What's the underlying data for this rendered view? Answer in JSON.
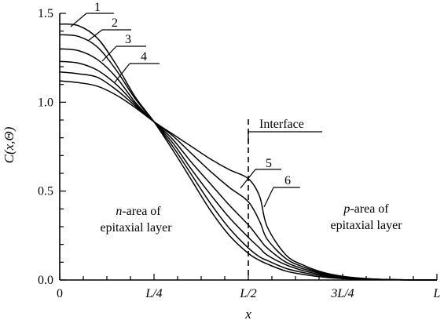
{
  "chart_data": {
    "type": "line",
    "xlabel": "x",
    "ylabel": "C(x,Θ)",
    "xlim": [
      0,
      1
    ],
    "ylim": [
      0,
      1.5
    ],
    "x_ticks": [
      {
        "value": 0,
        "label": "0"
      },
      {
        "value": 0.25,
        "label": "L/4"
      },
      {
        "value": 0.5,
        "label": "L/2"
      },
      {
        "value": 0.75,
        "label": "3L/4"
      },
      {
        "value": 1,
        "label": "L"
      }
    ],
    "y_ticks": [
      {
        "value": 0,
        "label": "0.0"
      },
      {
        "value": 0.5,
        "label": "0.5"
      },
      {
        "value": 1.0,
        "label": "1.0"
      },
      {
        "value": 1.5,
        "label": "1.5"
      }
    ],
    "interface_x": 0.5,
    "interface_label": "Interface",
    "region_labels": {
      "n_italic": "n",
      "n_rest": "-area of",
      "n_line2": "epitaxial layer",
      "p_italic": "p",
      "p_rest": "-area of",
      "p_line2": "epitaxial layer"
    },
    "curve_labels": [
      "1",
      "2",
      "3",
      "4",
      "5",
      "6"
    ],
    "series": [
      {
        "x": [
          0,
          0.05,
          0.1,
          0.15,
          0.2,
          0.25,
          0.3,
          0.35,
          0.4,
          0.45,
          0.5,
          0.53,
          0.55,
          0.6,
          0.65,
          0.7,
          0.75,
          0.8,
          0.85,
          0.9,
          0.95,
          1.0
        ],
        "values": [
          1.44,
          1.43,
          1.36,
          1.21,
          1.03,
          0.89,
          0.73,
          0.56,
          0.39,
          0.25,
          0.15,
          0.11,
          0.09,
          0.05,
          0.03,
          0.016,
          0.008,
          0.004,
          0.002,
          0.001,
          0.0,
          0.0
        ]
      },
      {
        "x": [
          0,
          0.05,
          0.1,
          0.15,
          0.2,
          0.25,
          0.3,
          0.35,
          0.4,
          0.45,
          0.5,
          0.53,
          0.55,
          0.6,
          0.65,
          0.7,
          0.75,
          0.8,
          0.85,
          0.9,
          0.95,
          1.0
        ],
        "values": [
          1.38,
          1.37,
          1.31,
          1.18,
          1.02,
          0.89,
          0.75,
          0.59,
          0.43,
          0.29,
          0.18,
          0.13,
          0.11,
          0.065,
          0.04,
          0.022,
          0.011,
          0.005,
          0.002,
          0.001,
          0.0,
          0.0
        ]
      },
      {
        "x": [
          0,
          0.05,
          0.1,
          0.15,
          0.2,
          0.25,
          0.3,
          0.35,
          0.4,
          0.45,
          0.5,
          0.53,
          0.55,
          0.6,
          0.65,
          0.7,
          0.75,
          0.8,
          0.85,
          0.9,
          0.95,
          1.0
        ],
        "values": [
          1.3,
          1.29,
          1.24,
          1.14,
          1.0,
          0.89,
          0.77,
          0.62,
          0.48,
          0.35,
          0.24,
          0.18,
          0.14,
          0.085,
          0.05,
          0.028,
          0.014,
          0.006,
          0.003,
          0.001,
          0.0,
          0.0
        ]
      },
      {
        "x": [
          0,
          0.05,
          0.1,
          0.15,
          0.2,
          0.25,
          0.3,
          0.35,
          0.4,
          0.45,
          0.5,
          0.53,
          0.55,
          0.6,
          0.65,
          0.7,
          0.75,
          0.8,
          0.85,
          0.9,
          0.95,
          1.0
        ],
        "values": [
          1.23,
          1.22,
          1.18,
          1.1,
          0.99,
          0.89,
          0.79,
          0.66,
          0.54,
          0.42,
          0.31,
          0.23,
          0.18,
          0.1,
          0.06,
          0.033,
          0.017,
          0.008,
          0.003,
          0.001,
          0.0,
          0.0
        ]
      },
      {
        "x": [
          0,
          0.05,
          0.1,
          0.15,
          0.2,
          0.25,
          0.3,
          0.35,
          0.4,
          0.45,
          0.5,
          0.53,
          0.55,
          0.6,
          0.65,
          0.7,
          0.75,
          0.8,
          0.85,
          0.9,
          0.95,
          1.0
        ],
        "values": [
          1.17,
          1.16,
          1.14,
          1.07,
          0.98,
          0.89,
          0.81,
          0.71,
          0.61,
          0.52,
          0.44,
          0.33,
          0.23,
          0.12,
          0.07,
          0.038,
          0.019,
          0.009,
          0.004,
          0.001,
          0.0,
          0.0
        ]
      },
      {
        "x": [
          0,
          0.05,
          0.1,
          0.15,
          0.2,
          0.25,
          0.3,
          0.35,
          0.4,
          0.45,
          0.5,
          0.53,
          0.55,
          0.6,
          0.65,
          0.7,
          0.75,
          0.8,
          0.85,
          0.9,
          0.95,
          1.0
        ],
        "values": [
          1.12,
          1.11,
          1.09,
          1.04,
          0.97,
          0.89,
          0.82,
          0.75,
          0.68,
          0.62,
          0.57,
          0.47,
          0.3,
          0.14,
          0.08,
          0.042,
          0.021,
          0.01,
          0.004,
          0.002,
          0.0,
          0.0
        ]
      }
    ]
  }
}
